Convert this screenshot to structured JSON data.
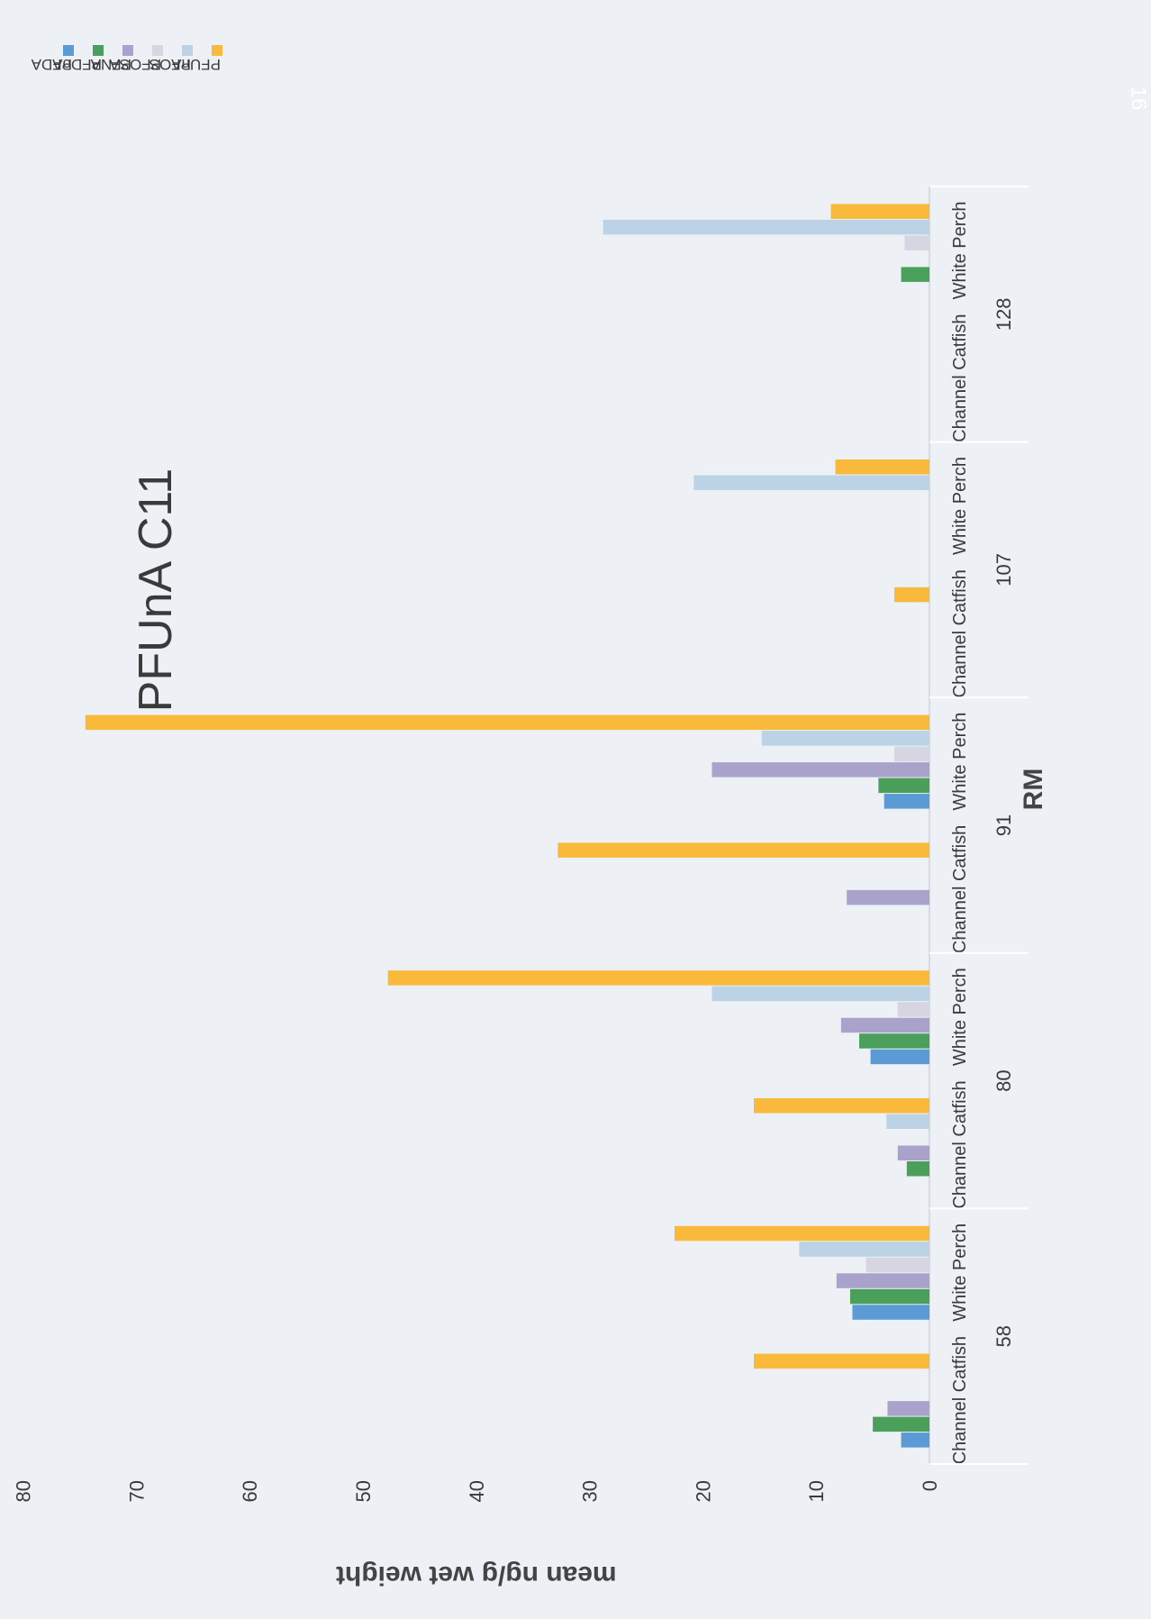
{
  "chart_data": {
    "type": "bar",
    "title": "PFUnA C11",
    "xlabel": "RM",
    "ylabel": "mean ng/g wet weight",
    "ylim": [
      0,
      80
    ],
    "yticks": [
      0,
      10,
      20,
      30,
      40,
      50,
      60,
      70,
      80
    ],
    "groups": [
      "58",
      "80",
      "91",
      "107",
      "128"
    ],
    "categories": [
      "Channel Catfish",
      "White Perch",
      "Channel Catfish",
      "White Perch",
      "Channel Catfish",
      "White Perch",
      "Channel Catfish",
      "White Perch",
      "Channel Catfish",
      "White Perch"
    ],
    "series": [
      {
        "name": "PFDA",
        "color": "#5b9bd5",
        "values": [
          2.5,
          6.8,
          0,
          5.2,
          0,
          4.0,
          0,
          0,
          0,
          0
        ]
      },
      {
        "name": "PFDoA",
        "color": "#4aa05a",
        "values": [
          5.0,
          7.0,
          2.0,
          6.2,
          0,
          4.5,
          0,
          0,
          0,
          2.5
        ]
      },
      {
        "name": "PFNA",
        "color": "#a9a3cc",
        "values": [
          3.7,
          8.2,
          2.8,
          7.8,
          7.3,
          19.2,
          0,
          0,
          0,
          0
        ]
      },
      {
        "name": "PFOSA",
        "color": "#d6d6e2",
        "values": [
          0,
          5.6,
          0,
          2.8,
          0,
          3.1,
          0,
          0,
          0,
          2.2
        ]
      },
      {
        "name": "PFOS",
        "color": "#bcd3e6",
        "values": [
          0,
          11.5,
          3.8,
          19.2,
          0,
          14.8,
          0,
          20.8,
          0,
          28.8
        ]
      },
      {
        "name": "PFUnA",
        "color": "#f9b93a",
        "values": [
          15.5,
          22.5,
          15.5,
          47.8,
          32.8,
          74.5,
          3.1,
          8.3,
          0,
          8.7
        ]
      }
    ],
    "legend_position": "top-right",
    "grid": false
  },
  "page": {
    "number": "16"
  }
}
